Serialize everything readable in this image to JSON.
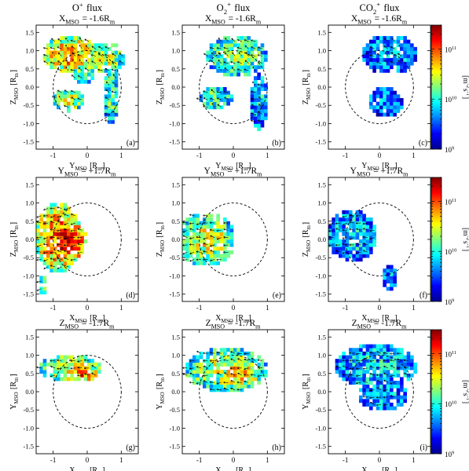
{
  "figure": {
    "column_titles": [
      "O$^+$ flux",
      "O$_2^+$ flux",
      "CO$_2^+$ flux"
    ],
    "row_subtitles": [
      "X$_{MSO}$ = -1.6R$_m$",
      "Y$_{MSO}$ = +1.7R$_m$",
      "Z$_{MSO}$ = -1.7R$_m$"
    ],
    "row_xlabels": [
      "Y$_{MSO}$ [R$_m$]",
      "X$_{MSO}$ [R$_m$]",
      "X$_{MSO}$ [R$_m$]"
    ],
    "row_ylabels": [
      "Z$_{MSO}$ [R$_m$]",
      "Z$_{MSO}$ [R$_m$]",
      "Y$_{MSO}$ [R$_m$]"
    ],
    "panel_labels": [
      "(a)",
      "(b)",
      "(c)",
      "(d)",
      "(e)",
      "(f)",
      "(g)",
      "(h)",
      "(i)"
    ],
    "colorbar": {
      "label": "[m$^{-2}$s$^{-1}$]",
      "ticks": [
        "10$^{11}$",
        "10$^{10}$",
        "10$^{9}$"
      ],
      "scale": "log",
      "range": [
        1000000000.0,
        300000000000.0
      ],
      "colormap": [
        "#00008f",
        "#0000ff",
        "#0080ff",
        "#00ffff",
        "#80ff80",
        "#ffff00",
        "#ff8000",
        "#ff0000",
        "#800000"
      ]
    }
  },
  "chart_data": {
    "type": "heatmap",
    "grid": "2D flux maps binned on a 0.1 R_m grid with velocity arrows",
    "xlim": [
      -1.5,
      1.5
    ],
    "ylim": [
      -1.7,
      1.7
    ],
    "xticks": [
      -1,
      0,
      1
    ],
    "yticks": [
      -1.5,
      -1.0,
      -0.5,
      0.0,
      0.5,
      1.0,
      1.5
    ],
    "xtick_labels": [
      "-1",
      "0",
      "1"
    ],
    "ytick_labels": [
      "-1.5",
      "-1.0",
      "-0.5",
      "0.0",
      "0.5",
      "1.0",
      "1.5"
    ],
    "planet_circle_radius": 1.0,
    "panels": [
      {
        "label": "(a)",
        "species": "O+",
        "plane": "X=-1.6",
        "regions": [
          {
            "type": "ellipse",
            "cx": -0.5,
            "cy": 0.9,
            "rx": 0.8,
            "ry": 0.5,
            "level": 0.72
          },
          {
            "type": "ellipse",
            "cx": 0.4,
            "cy": 0.8,
            "rx": 0.75,
            "ry": 0.45,
            "level": 0.55
          },
          {
            "type": "ellipse",
            "cx": -0.55,
            "cy": -0.35,
            "rx": 0.45,
            "ry": 0.3,
            "level": 0.6
          },
          {
            "type": "ellipse",
            "cx": 0.7,
            "cy": -0.2,
            "rx": 0.25,
            "ry": 0.8,
            "level": 0.45
          },
          {
            "type": "ellipse",
            "cx": -0.1,
            "cy": 0.4,
            "rx": 0.3,
            "ry": 0.35,
            "level": 0.5
          }
        ]
      },
      {
        "label": "(b)",
        "species": "O2+",
        "plane": "X=-1.6",
        "regions": [
          {
            "type": "ellipse",
            "cx": 0.1,
            "cy": 0.85,
            "rx": 0.9,
            "ry": 0.55,
            "level": 0.5
          },
          {
            "type": "ellipse",
            "cx": -0.5,
            "cy": -0.3,
            "rx": 0.5,
            "ry": 0.3,
            "level": 0.45
          },
          {
            "type": "ellipse",
            "cx": 0.75,
            "cy": -0.4,
            "rx": 0.25,
            "ry": 0.8,
            "level": 0.35
          }
        ]
      },
      {
        "label": "(c)",
        "species": "CO2+",
        "plane": "X=-1.6",
        "regions": [
          {
            "type": "ellipse",
            "cx": 0.3,
            "cy": 0.9,
            "rx": 0.8,
            "ry": 0.55,
            "level": 0.3
          },
          {
            "type": "ellipse",
            "cx": 0.2,
            "cy": -0.4,
            "rx": 0.55,
            "ry": 0.4,
            "level": 0.25
          }
        ]
      },
      {
        "label": "(d)",
        "species": "O+",
        "plane": "Y=+1.7",
        "regions": [
          {
            "type": "ellipse",
            "cx": -0.85,
            "cy": 0.05,
            "rx": 0.7,
            "ry": 0.95,
            "level": 0.75
          },
          {
            "type": "ellipse",
            "cx": -0.55,
            "cy": -0.05,
            "rx": 0.55,
            "ry": 0.55,
            "level": 0.9
          },
          {
            "type": "ellipse",
            "cx": -1.3,
            "cy": -1.25,
            "rx": 0.12,
            "ry": 0.25,
            "level": 0.5
          }
        ]
      },
      {
        "label": "(e)",
        "species": "O2+",
        "plane": "Y=+1.7",
        "regions": [
          {
            "type": "ellipse",
            "cx": -0.8,
            "cy": 0.0,
            "rx": 0.85,
            "ry": 0.75,
            "level": 0.55
          },
          {
            "type": "ellipse",
            "cx": -0.7,
            "cy": 0.0,
            "rx": 0.6,
            "ry": 0.5,
            "level": 0.65
          }
        ]
      },
      {
        "label": "(f)",
        "species": "CO2+",
        "plane": "Y=+1.7",
        "regions": [
          {
            "type": "ellipse",
            "cx": -0.8,
            "cy": 0.1,
            "rx": 0.75,
            "ry": 0.7,
            "level": 0.35
          },
          {
            "type": "ellipse",
            "cx": 0.3,
            "cy": -1.05,
            "rx": 0.2,
            "ry": 0.35,
            "level": 0.25
          }
        ]
      },
      {
        "label": "(g)",
        "species": "O+",
        "plane": "Z=-1.7",
        "regions": [
          {
            "type": "ellipse",
            "cx": -0.5,
            "cy": 0.65,
            "rx": 0.95,
            "ry": 0.35,
            "level": 0.6
          },
          {
            "type": "ellipse",
            "cx": -0.2,
            "cy": 0.5,
            "rx": 0.5,
            "ry": 0.25,
            "level": 0.78
          }
        ]
      },
      {
        "label": "(h)",
        "species": "O2+",
        "plane": "Z=-1.7",
        "regions": [
          {
            "type": "ellipse",
            "cx": -0.2,
            "cy": 0.6,
            "rx": 1.25,
            "ry": 0.6,
            "level": 0.55
          },
          {
            "type": "ellipse",
            "cx": 0.2,
            "cy": 0.5,
            "rx": 0.6,
            "ry": 0.35,
            "level": 0.7
          }
        ]
      },
      {
        "label": "(i)",
        "species": "CO2+",
        "plane": "Z=-1.7",
        "regions": [
          {
            "type": "ellipse",
            "cx": -0.1,
            "cy": 0.7,
            "rx": 1.2,
            "ry": 0.6,
            "level": 0.35
          },
          {
            "type": "ellipse",
            "cx": 0.1,
            "cy": -0.1,
            "rx": 0.7,
            "ry": 0.45,
            "level": 0.3
          }
        ]
      }
    ]
  }
}
